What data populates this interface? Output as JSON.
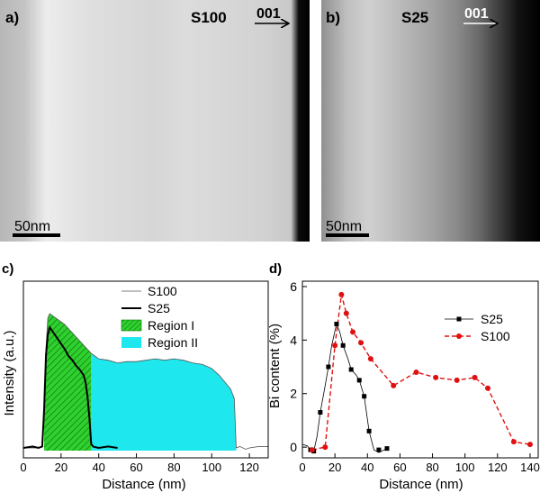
{
  "panels": {
    "a": {
      "label": "a)",
      "sample": "S100",
      "direction": "001",
      "scalebar": "50nm"
    },
    "b": {
      "label": "b)",
      "sample": "S25",
      "direction": "001",
      "scalebar": "50nm"
    },
    "c": {
      "label": "c)"
    },
    "d": {
      "label": "d)"
    }
  },
  "colors": {
    "region1": "#1fbf1f",
    "region2": "#1ee8ee",
    "s25_d": "#000000",
    "s100_d": "#e01010"
  },
  "chart_data": [
    {
      "type": "area",
      "panel": "c",
      "title": "",
      "xlabel": "Distance (nm)",
      "ylabel": "Intensity (a.u.)",
      "xlim": [
        0,
        130
      ],
      "xticks": [
        "0",
        "20",
        "40",
        "60",
        "80",
        "100",
        "120"
      ],
      "yticks_shown": false,
      "legend": {
        "position": "top-right",
        "entries": [
          "S100",
          "S25",
          "Region I",
          "Region II"
        ]
      },
      "series": [
        {
          "name": "S100",
          "x": [
            0,
            8,
            10,
            11,
            12,
            13,
            14,
            15,
            16,
            18,
            20,
            22,
            24,
            26,
            28,
            30,
            32,
            34,
            36,
            38,
            40,
            45,
            50,
            55,
            60,
            65,
            70,
            75,
            80,
            85,
            90,
            95,
            100,
            104,
            107,
            110,
            112,
            113,
            115,
            118,
            120,
            125,
            130
          ],
          "y": [
            0.02,
            0.02,
            0.03,
            0.3,
            0.75,
            0.97,
            1.0,
            0.99,
            0.98,
            0.96,
            0.94,
            0.92,
            0.89,
            0.86,
            0.83,
            0.8,
            0.77,
            0.74,
            0.71,
            0.69,
            0.67,
            0.66,
            0.64,
            0.65,
            0.65,
            0.66,
            0.67,
            0.66,
            0.67,
            0.66,
            0.64,
            0.63,
            0.6,
            0.55,
            0.5,
            0.45,
            0.38,
            0.02,
            0.03,
            0.01,
            0.02,
            0.03,
            0.03
          ]
        },
        {
          "name": "S25",
          "x": [
            0,
            5,
            8,
            10,
            11,
            12,
            13,
            14,
            15,
            16,
            18,
            20,
            22,
            24,
            26,
            28,
            30,
            32,
            33,
            34,
            35,
            36,
            37,
            40,
            45,
            50
          ],
          "y": [
            0.02,
            0.03,
            0.02,
            0.03,
            0.3,
            0.7,
            0.85,
            0.9,
            0.88,
            0.86,
            0.82,
            0.78,
            0.74,
            0.69,
            0.66,
            0.62,
            0.59,
            0.55,
            0.5,
            0.4,
            0.25,
            0.05,
            0.03,
            0.02,
            0.03,
            0.02
          ]
        }
      ],
      "regions": [
        {
          "name": "Region I",
          "from": 11,
          "to": 36
        },
        {
          "name": "Region II",
          "from": 36,
          "to": 113
        }
      ]
    },
    {
      "type": "line",
      "panel": "d",
      "title": "",
      "xlabel": "Distance (nm)",
      "ylabel": "Bi content (%)",
      "xlim": [
        0,
        145
      ],
      "ylim": [
        -0.4,
        6.2
      ],
      "xticks": [
        "0",
        "20",
        "40",
        "60",
        "80",
        "100",
        "120",
        "140"
      ],
      "yticks": [
        "0",
        "2",
        "4",
        "6"
      ],
      "legend": {
        "position": "top-right",
        "entries": [
          "S25",
          "S100"
        ]
      },
      "series": [
        {
          "name": "S25",
          "x": [
            5,
            7,
            11,
            16,
            21,
            25,
            30,
            35,
            38,
            41,
            47,
            52
          ],
          "y": [
            -0.1,
            -0.15,
            1.3,
            3.0,
            4.6,
            3.8,
            2.9,
            2.5,
            1.9,
            0.6,
            -0.1,
            -0.05
          ],
          "smooth_x": [
            0,
            3,
            5,
            7,
            9,
            11,
            14,
            16,
            18,
            21,
            23,
            25,
            28,
            30,
            33,
            35,
            38,
            41,
            44,
            47,
            52
          ],
          "smooth_y": [
            0.1,
            0.05,
            -0.1,
            -0.15,
            0.4,
            1.3,
            2.3,
            3.0,
            3.8,
            4.6,
            4.3,
            3.8,
            3.3,
            2.9,
            2.7,
            2.5,
            1.9,
            0.6,
            -0.1,
            -0.2,
            -0.05
          ]
        },
        {
          "name": "S100",
          "x": [
            6,
            14,
            20,
            24,
            27,
            31,
            36,
            42,
            56,
            70,
            82,
            95,
            106,
            114,
            130,
            140
          ],
          "y": [
            -0.1,
            0.0,
            3.8,
            5.7,
            5.0,
            4.3,
            3.9,
            3.3,
            2.3,
            2.8,
            2.6,
            2.5,
            2.6,
            2.2,
            0.2,
            0.1
          ]
        }
      ]
    }
  ]
}
